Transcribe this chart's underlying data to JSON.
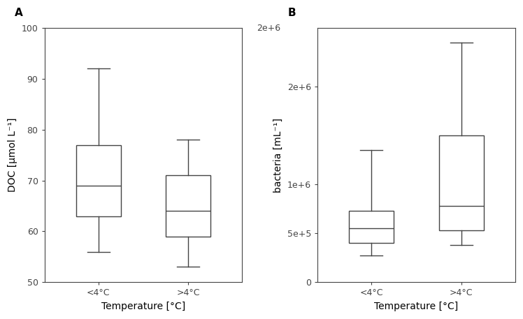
{
  "panel_A": {
    "label": "A",
    "ylabel": "DOC [μmol L⁻¹]",
    "xlabel": "Temperature [°C]",
    "ylim": [
      50,
      100
    ],
    "yticks": [
      50,
      60,
      70,
      80,
      90,
      100
    ],
    "yticklabels": [
      "50",
      "60",
      "70",
      "80",
      "90",
      "100"
    ],
    "categories": [
      "<4°C",
      ">4°C"
    ],
    "boxes": [
      {
        "whislo": 56,
        "q1": 63,
        "med": 69,
        "q3": 77,
        "whishi": 92
      },
      {
        "whislo": 53,
        "q1": 59,
        "med": 64,
        "q3": 71,
        "whishi": 78
      }
    ]
  },
  "panel_B": {
    "label": "B",
    "ylabel": "bacteria [mL⁻¹]",
    "xlabel": "Temperature [°C]",
    "ylim": [
      0,
      2600000
    ],
    "yticks": [
      0,
      500000,
      1000000,
      2000000
    ],
    "yticklabels": [
      "0",
      "5e+5",
      "1e+6",
      "2e+6"
    ],
    "top_label": "2e+6",
    "categories": [
      "<4°C",
      ">4°C"
    ],
    "boxes": [
      {
        "whislo": 270000,
        "q1": 400000,
        "med": 550000,
        "q3": 730000,
        "whishi": 1350000
      },
      {
        "whislo": 380000,
        "q1": 530000,
        "med": 780000,
        "q3": 1500000,
        "whishi": 2450000
      }
    ]
  },
  "box_color": "#ffffff",
  "box_edgecolor": "#444444",
  "whisker_color": "#444444",
  "median_color": "#444444",
  "cap_color": "#444444",
  "linewidth": 1.0,
  "box_width": 0.5,
  "label_fontsize": 10,
  "tick_fontsize": 9,
  "panel_label_fontsize": 11,
  "figure_border_color": "#aaaaaa"
}
